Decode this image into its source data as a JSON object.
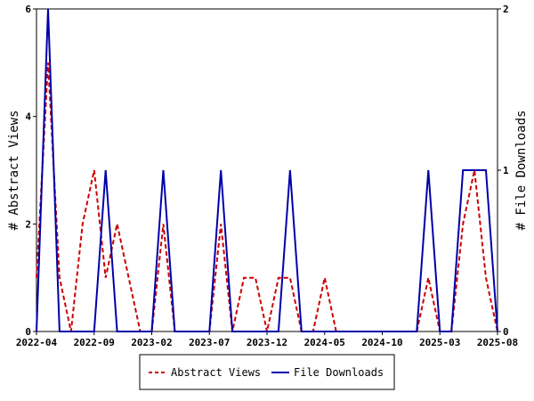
{
  "chart_data": {
    "type": "line",
    "x_ticks": [
      "2022-04",
      "2022-09",
      "2023-02",
      "2023-07",
      "2023-12",
      "2024-05",
      "2024-10",
      "2025-03",
      "2025-08"
    ],
    "y_left": {
      "label": "# Abstract Views",
      "ticks": [
        "0",
        "2",
        "4",
        "6"
      ],
      "lim": [
        0,
        6
      ]
    },
    "y_right": {
      "label": "# File Downloads",
      "ticks": [
        "0",
        "1",
        "2"
      ],
      "lim": [
        0,
        2
      ]
    },
    "series": [
      {
        "name": "Abstract Views",
        "axis": "left",
        "color": "#cc0000",
        "dash": "dashed",
        "points": [
          [
            "2022-04",
            1
          ],
          [
            "2022-05",
            5
          ],
          [
            "2022-06",
            1
          ],
          [
            "2022-07",
            0
          ],
          [
            "2022-08",
            2
          ],
          [
            "2022-09",
            3
          ],
          [
            "2022-10",
            1
          ],
          [
            "2022-11",
            2
          ],
          [
            "2022-12",
            1
          ],
          [
            "2023-01",
            0
          ],
          [
            "2023-02",
            0
          ],
          [
            "2023-03",
            2
          ],
          [
            "2023-04",
            0
          ],
          [
            "2023-05",
            0
          ],
          [
            "2023-06",
            0
          ],
          [
            "2023-07",
            0
          ],
          [
            "2023-08",
            2
          ],
          [
            "2023-09",
            0
          ],
          [
            "2023-10",
            1
          ],
          [
            "2023-11",
            1
          ],
          [
            "2023-12",
            0
          ],
          [
            "2024-01",
            1
          ],
          [
            "2024-02",
            1
          ],
          [
            "2024-03",
            0
          ],
          [
            "2024-04",
            0
          ],
          [
            "2024-05",
            1
          ],
          [
            "2024-06",
            0
          ],
          [
            "2024-07",
            0
          ],
          [
            "2024-08",
            0
          ],
          [
            "2024-09",
            0
          ],
          [
            "2024-10",
            0
          ],
          [
            "2024-11",
            0
          ],
          [
            "2024-12",
            0
          ],
          [
            "2025-01",
            0
          ],
          [
            "2025-02",
            1
          ],
          [
            "2025-03",
            0
          ],
          [
            "2025-04",
            0
          ],
          [
            "2025-05",
            2
          ],
          [
            "2025-06",
            3
          ],
          [
            "2025-07",
            1
          ],
          [
            "2025-08",
            0
          ]
        ]
      },
      {
        "name": "File Downloads",
        "axis": "right",
        "color": "#0000aa",
        "dash": "solid",
        "points": [
          [
            "2022-04",
            0
          ],
          [
            "2022-05",
            2
          ],
          [
            "2022-06",
            0
          ],
          [
            "2022-07",
            0
          ],
          [
            "2022-08",
            0
          ],
          [
            "2022-09",
            0
          ],
          [
            "2022-10",
            1
          ],
          [
            "2022-11",
            0
          ],
          [
            "2022-12",
            0
          ],
          [
            "2023-01",
            0
          ],
          [
            "2023-02",
            0
          ],
          [
            "2023-03",
            1
          ],
          [
            "2023-04",
            0
          ],
          [
            "2023-05",
            0
          ],
          [
            "2023-06",
            0
          ],
          [
            "2023-07",
            0
          ],
          [
            "2023-08",
            1
          ],
          [
            "2023-09",
            0
          ],
          [
            "2023-10",
            0
          ],
          [
            "2023-11",
            0
          ],
          [
            "2023-12",
            0
          ],
          [
            "2024-01",
            0
          ],
          [
            "2024-02",
            1
          ],
          [
            "2024-03",
            0
          ],
          [
            "2024-04",
            0
          ],
          [
            "2024-05",
            0
          ],
          [
            "2024-06",
            0
          ],
          [
            "2024-07",
            0
          ],
          [
            "2024-08",
            0
          ],
          [
            "2024-09",
            0
          ],
          [
            "2024-10",
            0
          ],
          [
            "2024-11",
            0
          ],
          [
            "2024-12",
            0
          ],
          [
            "2025-01",
            0
          ],
          [
            "2025-02",
            1
          ],
          [
            "2025-03",
            0
          ],
          [
            "2025-04",
            0
          ],
          [
            "2025-05",
            1
          ],
          [
            "2025-06",
            1
          ],
          [
            "2025-07",
            1
          ],
          [
            "2025-08",
            0
          ]
        ]
      }
    ],
    "legend": {
      "position": "bottom",
      "entries": [
        "Abstract Views",
        "File Downloads"
      ]
    },
    "grid": false
  }
}
